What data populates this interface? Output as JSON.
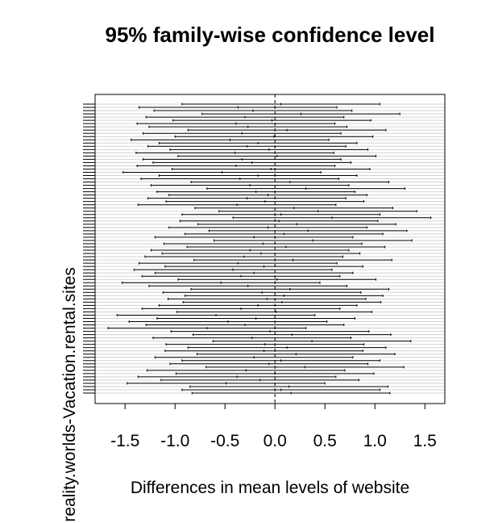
{
  "chart_data": {
    "type": "interval",
    "title": "95% family-wise confidence level",
    "xlabel": "Differences in mean levels of website",
    "ylabel": "al.reality.worlds-Vacation.rental.sites",
    "xlim": [
      -1.8,
      1.7
    ],
    "xticks": [
      "-1.5",
      "-1.0",
      "-0.5",
      "0.0",
      "0.5",
      "1.0",
      "1.5"
    ],
    "reference_line": 0,
    "grid": "horizontal",
    "intervals": [
      {
        "lwr": -0.93,
        "est": 0.06,
        "upr": 1.05
      },
      {
        "lwr": -1.36,
        "est": -0.37,
        "upr": 0.62
      },
      {
        "lwr": -1.21,
        "est": -0.22,
        "upr": 0.77
      },
      {
        "lwr": -0.73,
        "est": 0.26,
        "upr": 1.25
      },
      {
        "lwr": -1.29,
        "est": -0.3,
        "upr": 0.69
      },
      {
        "lwr": -1.02,
        "est": -0.03,
        "upr": 0.96
      },
      {
        "lwr": -1.38,
        "est": -0.39,
        "upr": 0.6
      },
      {
        "lwr": -1.26,
        "est": -0.27,
        "upr": 0.72
      },
      {
        "lwr": -0.87,
        "est": 0.12,
        "upr": 1.11
      },
      {
        "lwr": -1.32,
        "est": -0.33,
        "upr": 0.66
      },
      {
        "lwr": -1.0,
        "est": -0.01,
        "upr": 0.98
      },
      {
        "lwr": -1.44,
        "est": -0.45,
        "upr": 0.54
      },
      {
        "lwr": -1.16,
        "est": -0.17,
        "upr": 0.82
      },
      {
        "lwr": -1.27,
        "est": -0.28,
        "upr": 0.71
      },
      {
        "lwr": -1.05,
        "est": -0.06,
        "upr": 0.93
      },
      {
        "lwr": -1.39,
        "est": -0.4,
        "upr": 0.59
      },
      {
        "lwr": -0.97,
        "est": 0.02,
        "upr": 1.01
      },
      {
        "lwr": -1.32,
        "est": -0.33,
        "upr": 0.66
      },
      {
        "lwr": -1.22,
        "est": -0.23,
        "upr": 0.76
      },
      {
        "lwr": -1.38,
        "est": -0.39,
        "upr": 0.6
      },
      {
        "lwr": -1.03,
        "est": -0.04,
        "upr": 0.95
      },
      {
        "lwr": -1.52,
        "est": -0.53,
        "upr": 0.46
      },
      {
        "lwr": -1.16,
        "est": -0.17,
        "upr": 0.82
      },
      {
        "lwr": -1.34,
        "est": -0.35,
        "upr": 0.64
      },
      {
        "lwr": -0.84,
        "est": 0.15,
        "upr": 1.14
      },
      {
        "lwr": -1.24,
        "est": -0.25,
        "upr": 0.74
      },
      {
        "lwr": -0.68,
        "est": 0.31,
        "upr": 1.3
      },
      {
        "lwr": -1.18,
        "est": -0.19,
        "upr": 0.8
      },
      {
        "lwr": -1.06,
        "est": -0.07,
        "upr": 0.92
      },
      {
        "lwr": -1.27,
        "est": -0.28,
        "upr": 0.71
      },
      {
        "lwr": -1.09,
        "est": -0.1,
        "upr": 0.89
      },
      {
        "lwr": -1.37,
        "est": -0.38,
        "upr": 0.61
      },
      {
        "lwr": -0.8,
        "est": 0.19,
        "upr": 1.18
      },
      {
        "lwr": -0.56,
        "est": 0.43,
        "upr": 1.42
      },
      {
        "lwr": -0.93,
        "est": 0.06,
        "upr": 1.05
      },
      {
        "lwr": -0.42,
        "est": 0.57,
        "upr": 1.56
      },
      {
        "lwr": -0.95,
        "est": 0.04,
        "upr": 1.03
      },
      {
        "lwr": -0.77,
        "est": 0.22,
        "upr": 1.21
      },
      {
        "lwr": -1.06,
        "est": -0.07,
        "upr": 0.92
      },
      {
        "lwr": -0.66,
        "est": 0.33,
        "upr": 1.32
      },
      {
        "lwr": -0.9,
        "est": 0.09,
        "upr": 1.08
      },
      {
        "lwr": -1.2,
        "est": -0.21,
        "upr": 0.78
      },
      {
        "lwr": -0.61,
        "est": 0.38,
        "upr": 1.37
      },
      {
        "lwr": -1.11,
        "est": -0.12,
        "upr": 0.87
      },
      {
        "lwr": -0.88,
        "est": 0.11,
        "upr": 1.1
      },
      {
        "lwr": -1.24,
        "est": -0.25,
        "upr": 0.74
      },
      {
        "lwr": -1.13,
        "est": -0.14,
        "upr": 0.85
      },
      {
        "lwr": -1.3,
        "est": -0.31,
        "upr": 0.68
      },
      {
        "lwr": -0.81,
        "est": 0.18,
        "upr": 1.17
      },
      {
        "lwr": -1.36,
        "est": -0.37,
        "upr": 0.62
      },
      {
        "lwr": -1.1,
        "est": -0.11,
        "upr": 0.88
      },
      {
        "lwr": -1.41,
        "est": -0.42,
        "upr": 0.57
      },
      {
        "lwr": -1.2,
        "est": -0.21,
        "upr": 0.78
      },
      {
        "lwr": -1.33,
        "est": -0.34,
        "upr": 0.65
      },
      {
        "lwr": -0.97,
        "est": 0.02,
        "upr": 1.01
      },
      {
        "lwr": -1.53,
        "est": -0.54,
        "upr": 0.45
      },
      {
        "lwr": -1.26,
        "est": -0.27,
        "upr": 0.72
      },
      {
        "lwr": -0.84,
        "est": 0.15,
        "upr": 1.14
      },
      {
        "lwr": -1.12,
        "est": -0.13,
        "upr": 0.86
      },
      {
        "lwr": -0.9,
        "est": 0.09,
        "upr": 1.08
      },
      {
        "lwr": -1.07,
        "est": -0.08,
        "upr": 0.91
      },
      {
        "lwr": -0.92,
        "est": 0.07,
        "upr": 1.06
      },
      {
        "lwr": -1.16,
        "est": -0.17,
        "upr": 0.82
      },
      {
        "lwr": -1.33,
        "est": -0.34,
        "upr": 0.65
      },
      {
        "lwr": -0.98,
        "est": 0.01,
        "upr": 0.97
      },
      {
        "lwr": -1.58,
        "est": -0.59,
        "upr": 0.4
      },
      {
        "lwr": -1.18,
        "est": -0.19,
        "upr": 0.8
      },
      {
        "lwr": -1.46,
        "est": -0.47,
        "upr": 0.52
      },
      {
        "lwr": -1.29,
        "est": -0.3,
        "upr": 0.69
      },
      {
        "lwr": -1.67,
        "est": -0.68,
        "upr": 0.31
      },
      {
        "lwr": -1.04,
        "est": -0.05,
        "upr": 0.94
      },
      {
        "lwr": -0.82,
        "est": 0.17,
        "upr": 1.16
      },
      {
        "lwr": -1.22,
        "est": -0.23,
        "upr": 0.76
      },
      {
        "lwr": -0.62,
        "est": 0.37,
        "upr": 1.36
      },
      {
        "lwr": -1.09,
        "est": -0.1,
        "upr": 0.89
      },
      {
        "lwr": -0.87,
        "est": 0.12,
        "upr": 1.11
      },
      {
        "lwr": -1.1,
        "est": -0.11,
        "upr": 0.88
      },
      {
        "lwr": -0.78,
        "est": 0.21,
        "upr": 1.2
      },
      {
        "lwr": -1.2,
        "est": -0.21,
        "upr": 0.78
      },
      {
        "lwr": -0.93,
        "est": 0.06,
        "upr": 1.05
      },
      {
        "lwr": -1.05,
        "est": -0.06,
        "upr": 0.93
      },
      {
        "lwr": -0.69,
        "est": 0.3,
        "upr": 1.29
      },
      {
        "lwr": -1.28,
        "est": -0.29,
        "upr": 0.7
      },
      {
        "lwr": -0.99,
        "est": 0.0,
        "upr": 0.99
      },
      {
        "lwr": -1.37,
        "est": -0.38,
        "upr": 0.61
      },
      {
        "lwr": -1.14,
        "est": -0.15,
        "upr": 0.84
      },
      {
        "lwr": -1.48,
        "est": -0.49,
        "upr": 0.5
      },
      {
        "lwr": -0.85,
        "est": 0.14,
        "upr": 1.13
      },
      {
        "lwr": -0.93,
        "est": 0.06,
        "upr": 1.05
      },
      {
        "lwr": -0.83,
        "est": 0.16,
        "upr": 1.15
      }
    ]
  }
}
